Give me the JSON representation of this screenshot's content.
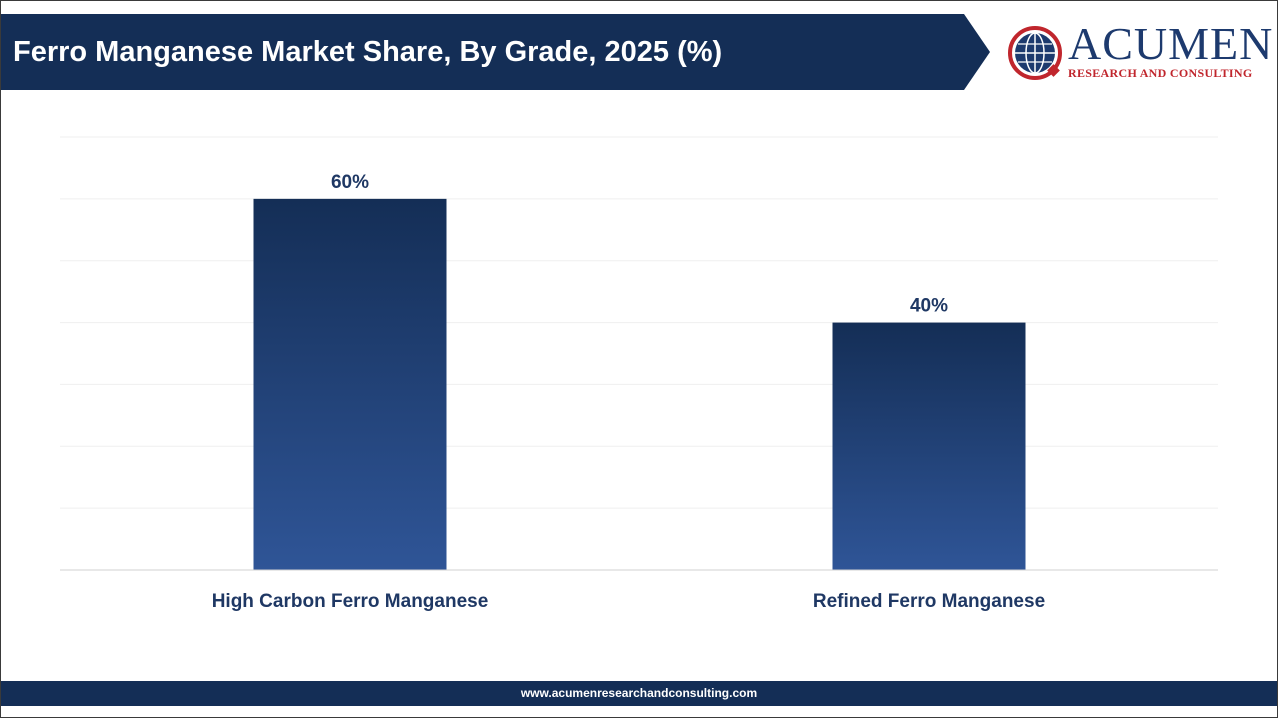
{
  "header": {
    "title": "Ferro Manganese Market Share, By Grade, 2025 (%)"
  },
  "logo": {
    "name": "ACUMEN",
    "tagline": "RESEARCH AND CONSULTING"
  },
  "footer": {
    "url": "www.acumenresearchandconsulting.com"
  },
  "colors": {
    "banner": "#142e56",
    "bar_top": "#142e56",
    "bar_bottom": "#2f5597",
    "label": "#1f3864",
    "logo_red": "#c0262d"
  },
  "chart_data": {
    "type": "bar",
    "title": "Ferro Manganese Market Share, By Grade, 2025 (%)",
    "categories": [
      "High Carbon Ferro Manganese",
      "Refined Ferro Manganese"
    ],
    "values": [
      60,
      40
    ],
    "data_labels": [
      "60%",
      "40%"
    ],
    "ylim": [
      0,
      70
    ],
    "grid": true,
    "legend": "none"
  }
}
